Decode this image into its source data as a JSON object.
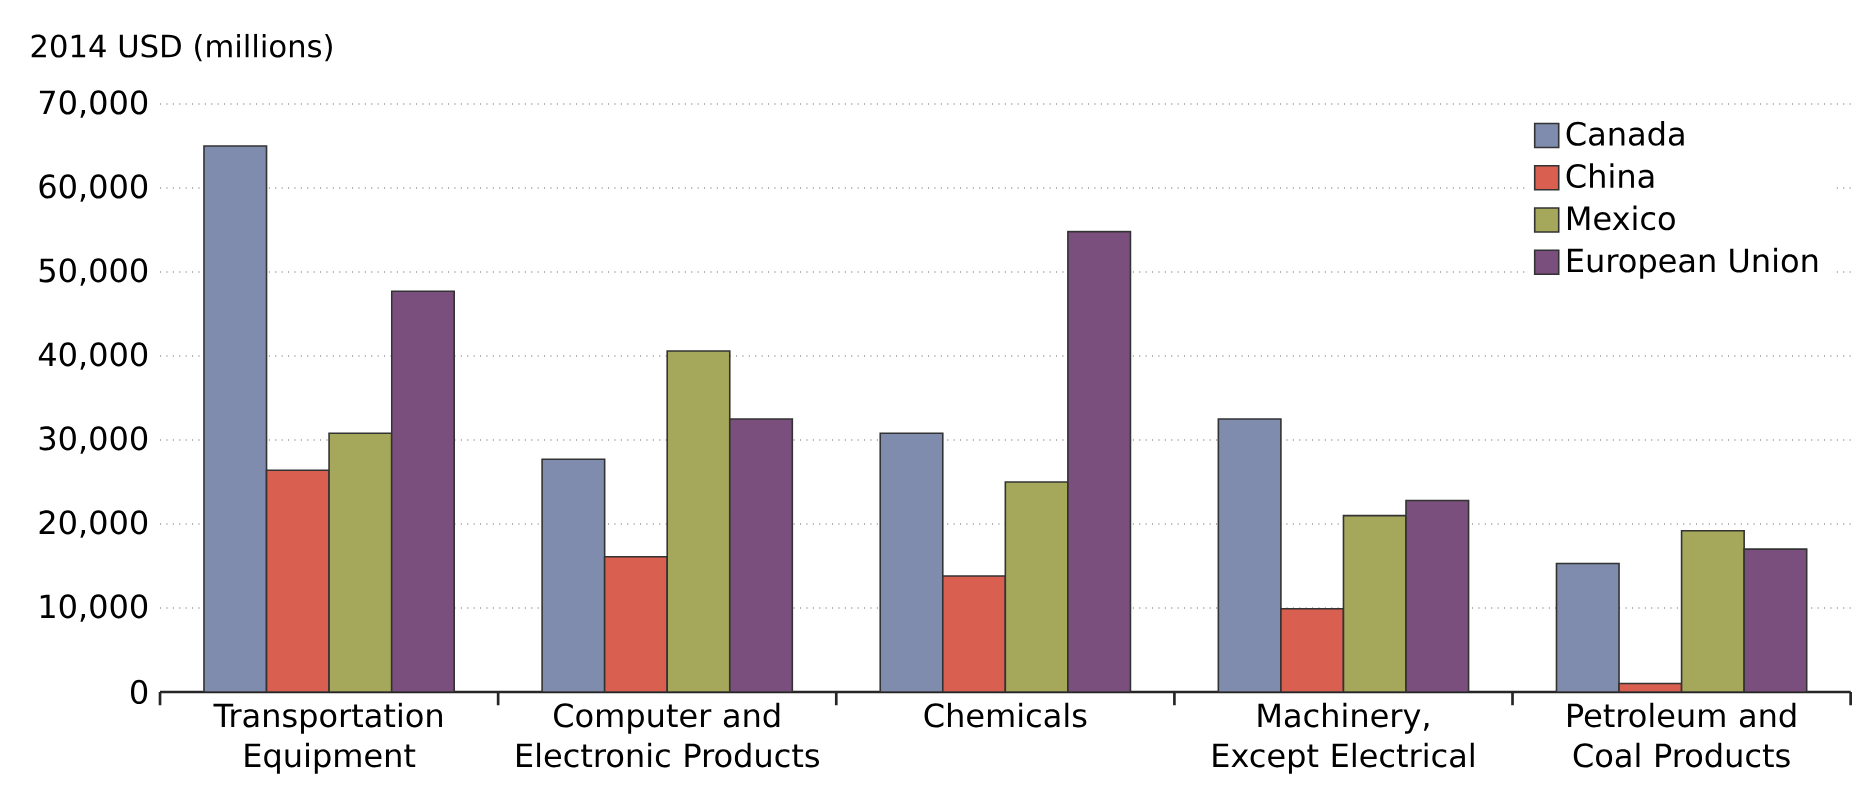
{
  "chart_data": {
    "type": "bar",
    "ylabel": "2014 USD (millions)",
    "categories": [
      "Transportation Equipment",
      "Computer and Electronic Products",
      "Chemicals",
      "Machinery, Except Electrical",
      "Petroleum and Coal Products"
    ],
    "series": [
      {
        "name": "Canada",
        "color": "#7f8cae",
        "values": [
          65000,
          27700,
          30800,
          32500,
          15300
        ]
      },
      {
        "name": "China",
        "color": "#d95f50",
        "values": [
          26400,
          16100,
          13800,
          9900,
          1000
        ]
      },
      {
        "name": "Mexico",
        "color": "#a5a85a",
        "values": [
          30800,
          40600,
          25000,
          21000,
          19200
        ]
      },
      {
        "name": "European Union",
        "color": "#7b4f7d",
        "values": [
          47700,
          32500,
          54800,
          22800,
          17000
        ]
      }
    ],
    "ylim": [
      0,
      70000
    ],
    "yticks": [
      {
        "value": 0,
        "label": "0"
      },
      {
        "value": 10000,
        "label": "10,000"
      },
      {
        "value": 20000,
        "label": "20,000"
      },
      {
        "value": 30000,
        "label": "30,000"
      },
      {
        "value": 40000,
        "label": "40,000"
      },
      {
        "value": 50000,
        "label": "50,000"
      },
      {
        "value": 60000,
        "label": "60,000"
      },
      {
        "value": 70000,
        "label": "70,000"
      }
    ],
    "grid": "y",
    "legend": "top right"
  }
}
